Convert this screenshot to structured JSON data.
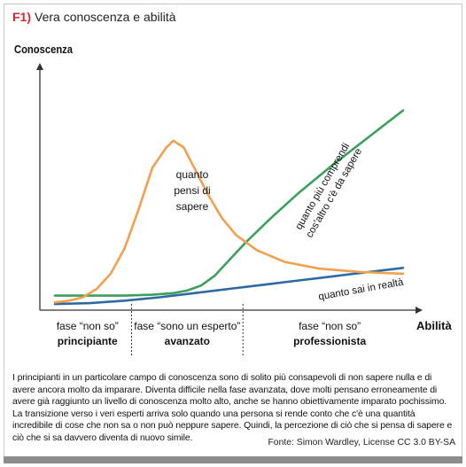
{
  "figure": {
    "number": "F1)",
    "title": "Vera conoscenza e abilità",
    "caption": "I principianti in un particolare campo di conoscenza sono di solito più consapevoli di non sapere nulla e di avere ancora molto da imparare. Diventa difficile nella fase avanzata, dove molti pensano erroneamente di avere già raggiunto un livello di conoscenza molto alto, anche se hanno obiettivamente imparato pochissimo. La transizione verso i veri esperti arriva solo quando una persona si rende conto che c'è una quantità incredibile di cose che non sa o non può neppure sapere. Quindi, la percezione di ciò che si pensa di sapere e ciò che si sa davvero diventa di nuovo simile.",
    "source": "Fonte: Simon Wardley, License CC 3.0 BY-SA"
  },
  "colors": {
    "orange": "#f0a050",
    "green": "#3aa05a",
    "blue": "#2e6aa0",
    "axis": "#333333",
    "accent": "#d8262e"
  },
  "chart_data": {
    "type": "line",
    "xlabel": "Abilità",
    "ylabel": "Conoscenza",
    "xlim": [
      0,
      100
    ],
    "ylim": [
      0,
      100
    ],
    "grid": false,
    "phases": [
      {
        "line1": "fase “non so”",
        "line2": "principiante",
        "x_start": 0,
        "x_end": 22
      },
      {
        "line1": "fase “sono un esperto”",
        "line2": "avanzato",
        "x_start": 22,
        "x_end": 54
      },
      {
        "line1": "fase “non so”",
        "line2": "professionista",
        "x_start": 54,
        "x_end": 100
      }
    ],
    "series": [
      {
        "key": "orange",
        "label_lines": [
          "quanto",
          "pensi di",
          "sapere"
        ],
        "x": [
          0,
          4,
          8,
          12,
          16,
          20,
          24,
          28,
          32,
          34,
          37,
          40,
          44,
          48,
          52,
          58,
          66,
          76,
          88,
          100
        ],
        "y": [
          2,
          3,
          5,
          10,
          19,
          34,
          57,
          82,
          94,
          98,
          94,
          82,
          66,
          52,
          42,
          33,
          26,
          22,
          20,
          19
        ]
      },
      {
        "key": "green",
        "label_lines": [
          "quanto più comprendi",
          "cos'altro c'è da sapere"
        ],
        "x": [
          0,
          10,
          20,
          28,
          34,
          38,
          42,
          46,
          50,
          55,
          62,
          70,
          80,
          90,
          100
        ],
        "y": [
          6,
          6,
          6,
          6.5,
          7.5,
          9,
          12,
          18,
          27,
          38,
          52,
          67,
          84,
          100,
          116
        ]
      },
      {
        "key": "blue",
        "label_lines": [
          "quanto sai in realtà"
        ],
        "x": [
          0,
          10,
          20,
          30,
          40,
          50,
          60,
          70,
          80,
          90,
          100
        ],
        "y": [
          1,
          1.5,
          3,
          5,
          7.5,
          10,
          12.5,
          15,
          17.5,
          20,
          22.5
        ]
      }
    ]
  }
}
